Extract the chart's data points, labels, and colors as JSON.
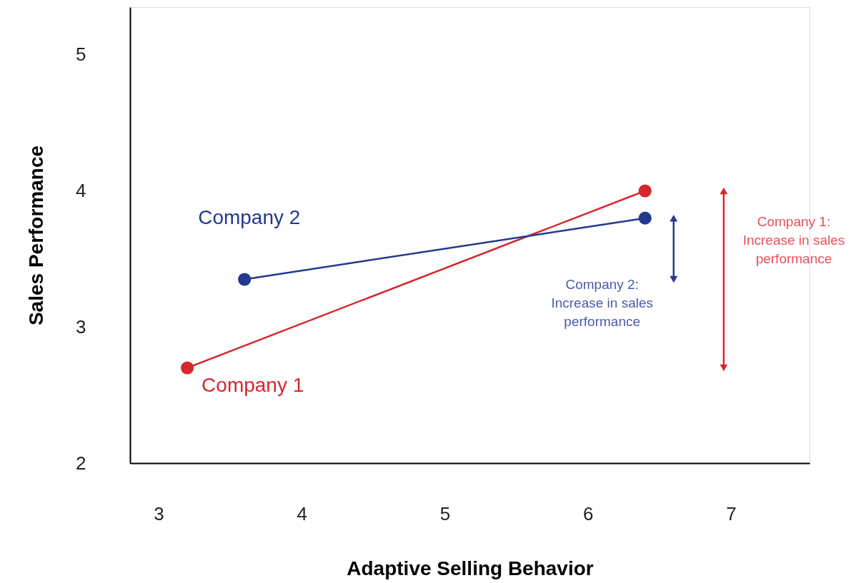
{
  "chart_data": {
    "type": "line",
    "xlabel": "Adaptive Selling Behavior",
    "ylabel": "Sales Performance",
    "series": [
      {
        "name": "Company 1",
        "color": "#d7262e",
        "x": [
          3.2,
          6.4
        ],
        "values": [
          2.7,
          4.0
        ]
      },
      {
        "name": "Company 2",
        "color": "#22398e",
        "x": [
          3.6,
          6.4
        ],
        "values": [
          3.35,
          3.8
        ]
      }
    ],
    "annotations": [
      "Company 1:\nIncrease in sales\nperformance",
      "Company 2:\nIncrease in sales\nperformance"
    ],
    "xlim": [
      2.8,
      7.55
    ],
    "xticks": [
      3,
      4,
      5,
      6,
      7
    ],
    "ylim": [
      2,
      5.35
    ],
    "yticks": [
      2,
      3,
      4,
      5
    ],
    "marker": "circle",
    "line_style": "solid",
    "grid": false
  }
}
